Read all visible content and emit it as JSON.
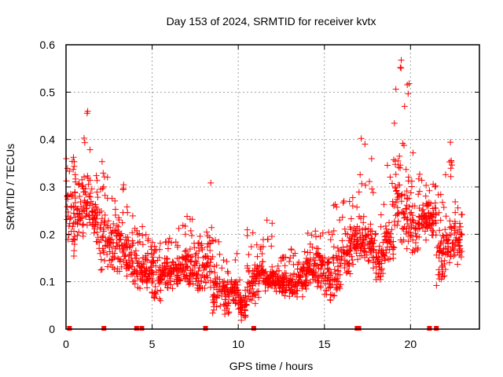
{
  "chart_data": {
    "type": "scatter",
    "title": "Day 153 of 2024, SRMTID for receiver kvtx",
    "xlabel": "GPS time / hours",
    "ylabel": "SRMTID / TECUs",
    "xlim": [
      0,
      24
    ],
    "ylim": [
      0,
      0.6
    ],
    "xticks": [
      0,
      5,
      10,
      15,
      20
    ],
    "xtick_labels": [
      "0",
      "5",
      "10",
      "15",
      "20"
    ],
    "yticks": [
      0,
      0.1,
      0.2,
      0.3,
      0.4,
      0.5,
      0.6
    ],
    "ytick_labels": [
      "0",
      "0.1",
      "0.2",
      "0.3",
      "0.4",
      "0.5",
      "0.6"
    ],
    "grid": true,
    "legend": "none",
    "marker": "plus",
    "color": "#ff0000",
    "zero_points_x": [
      0.2,
      2.2,
      4.1,
      4.4,
      8.1,
      10.9,
      16.9,
      17.0,
      21.1,
      21.5
    ],
    "envelope": {
      "description": "Dense scatter (~2000 points). Per hour-bin: [hour, typical_low, typical_high, sparse_peak]",
      "bins": [
        [
          0.0,
          0.16,
          0.33,
          0.37
        ],
        [
          0.5,
          0.17,
          0.3,
          0.34
        ],
        [
          1.0,
          0.2,
          0.33,
          0.46
        ],
        [
          1.5,
          0.17,
          0.28,
          0.33
        ],
        [
          2.0,
          0.12,
          0.28,
          0.38
        ],
        [
          2.5,
          0.12,
          0.24,
          0.28
        ],
        [
          3.0,
          0.12,
          0.22,
          0.31
        ],
        [
          3.5,
          0.1,
          0.21,
          0.26
        ],
        [
          4.0,
          0.08,
          0.18,
          0.22
        ],
        [
          4.5,
          0.07,
          0.16,
          0.2
        ],
        [
          5.0,
          0.06,
          0.15,
          0.19
        ],
        [
          5.5,
          0.08,
          0.15,
          0.2
        ],
        [
          6.0,
          0.08,
          0.16,
          0.22
        ],
        [
          6.5,
          0.09,
          0.18,
          0.23
        ],
        [
          7.0,
          0.09,
          0.19,
          0.24
        ],
        [
          7.5,
          0.08,
          0.18,
          0.22
        ],
        [
          8.0,
          0.07,
          0.2,
          0.31
        ],
        [
          8.5,
          0.04,
          0.12,
          0.19
        ],
        [
          9.0,
          0.03,
          0.11,
          0.15
        ],
        [
          9.5,
          0.05,
          0.11,
          0.16
        ],
        [
          10.0,
          0.02,
          0.07,
          0.11
        ],
        [
          10.5,
          0.06,
          0.14,
          0.21
        ],
        [
          11.0,
          0.07,
          0.15,
          0.19
        ],
        [
          11.5,
          0.08,
          0.13,
          0.24
        ],
        [
          12.0,
          0.08,
          0.12,
          0.17
        ],
        [
          12.5,
          0.07,
          0.12,
          0.16
        ],
        [
          13.0,
          0.07,
          0.12,
          0.17
        ],
        [
          13.5,
          0.07,
          0.14,
          0.19
        ],
        [
          14.0,
          0.09,
          0.16,
          0.22
        ],
        [
          14.5,
          0.09,
          0.17,
          0.21
        ],
        [
          15.0,
          0.06,
          0.15,
          0.22
        ],
        [
          15.5,
          0.07,
          0.17,
          0.27
        ],
        [
          16.0,
          0.12,
          0.22,
          0.33
        ],
        [
          16.5,
          0.14,
          0.22,
          0.3
        ],
        [
          17.0,
          0.14,
          0.24,
          0.46
        ],
        [
          17.5,
          0.13,
          0.22,
          0.39
        ],
        [
          18.0,
          0.1,
          0.18,
          0.27
        ],
        [
          18.5,
          0.14,
          0.22,
          0.35
        ],
        [
          19.0,
          0.18,
          0.38,
          0.6
        ],
        [
          19.5,
          0.17,
          0.33,
          0.52
        ],
        [
          20.0,
          0.15,
          0.26,
          0.38
        ],
        [
          20.5,
          0.19,
          0.28,
          0.33
        ],
        [
          21.0,
          0.2,
          0.28,
          0.31
        ],
        [
          21.5,
          0.1,
          0.24,
          0.29
        ],
        [
          22.0,
          0.13,
          0.25,
          0.4
        ],
        [
          22.5,
          0.14,
          0.24,
          0.29
        ]
      ]
    }
  }
}
